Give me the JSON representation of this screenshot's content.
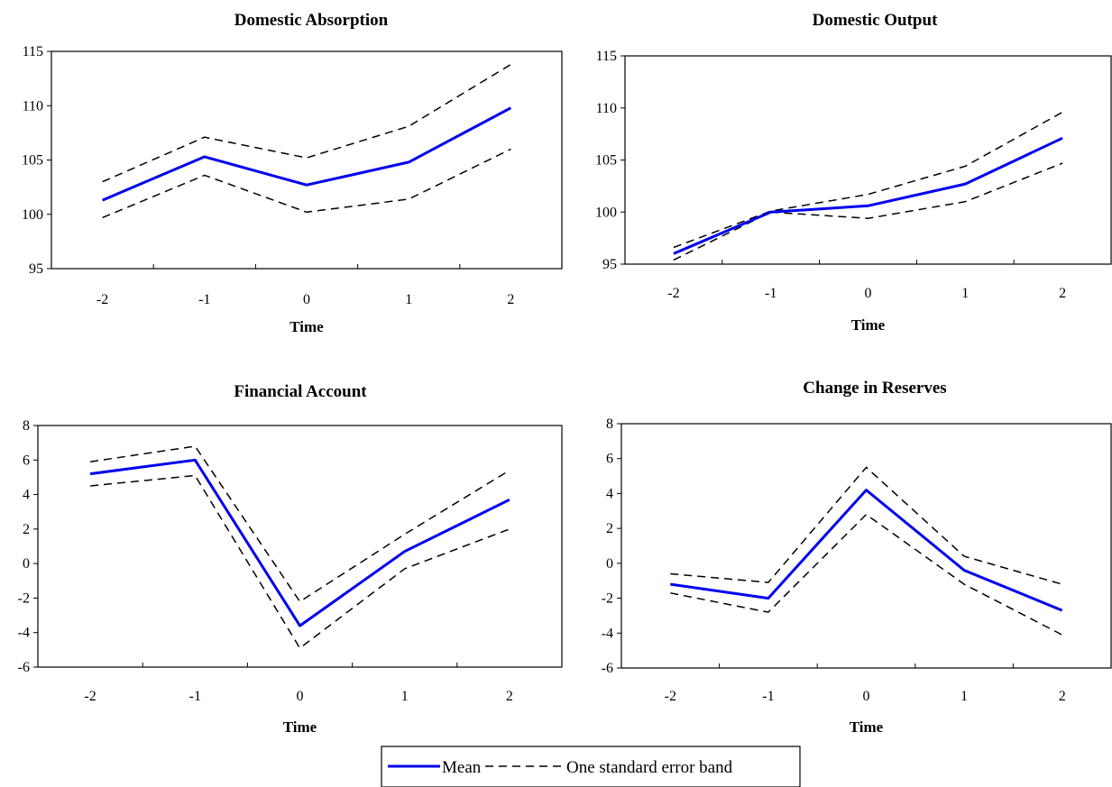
{
  "chart_data": [
    {
      "type": "line",
      "title": "Domestic Absorption",
      "xlabel": "Time",
      "ylabel": "",
      "x": [
        -2,
        -1,
        0,
        1,
        2
      ],
      "ylim": [
        95,
        115
      ],
      "yticks": [
        95,
        100,
        105,
        110,
        115
      ],
      "series": [
        {
          "name": "Mean",
          "values": [
            101.3,
            105.3,
            102.7,
            104.8,
            109.8
          ]
        },
        {
          "name": "One standard error band",
          "values": [
            103.0,
            107.1,
            105.2,
            108.1,
            113.8
          ]
        },
        {
          "name": "One standard error band",
          "values": [
            99.7,
            103.6,
            100.2,
            101.4,
            106.0
          ]
        }
      ]
    },
    {
      "type": "line",
      "title": "Domestic Output",
      "xlabel": "Time",
      "ylabel": "",
      "x": [
        -2,
        -1,
        0,
        1,
        2
      ],
      "ylim": [
        95,
        115
      ],
      "yticks": [
        95,
        100,
        105,
        110,
        115
      ],
      "series": [
        {
          "name": "Mean",
          "values": [
            96.0,
            100.0,
            100.6,
            102.7,
            107.1
          ]
        },
        {
          "name": "One standard error band",
          "values": [
            96.6,
            100.1,
            101.7,
            104.4,
            109.6
          ]
        },
        {
          "name": "One standard error band",
          "values": [
            95.4,
            100.0,
            99.4,
            101.0,
            104.7
          ]
        }
      ]
    },
    {
      "type": "line",
      "title": "Financial Account",
      "xlabel": "Time",
      "ylabel": "",
      "x": [
        -2,
        -1,
        0,
        1,
        2
      ],
      "ylim": [
        -6,
        8
      ],
      "yticks": [
        -6,
        -4,
        -2,
        0,
        2,
        4,
        6,
        8
      ],
      "series": [
        {
          "name": "Mean",
          "values": [
            5.2,
            6.0,
            -3.6,
            0.7,
            3.7
          ]
        },
        {
          "name": "One standard error band",
          "values": [
            5.9,
            6.8,
            -2.2,
            1.7,
            5.4
          ]
        },
        {
          "name": "One standard error band",
          "values": [
            4.5,
            5.1,
            -4.9,
            -0.3,
            2.0
          ]
        }
      ]
    },
    {
      "type": "line",
      "title": "Change in Reserves",
      "xlabel": "Time",
      "ylabel": "",
      "x": [
        -2,
        -1,
        0,
        1,
        2
      ],
      "ylim": [
        -6,
        8
      ],
      "yticks": [
        -6,
        -4,
        -2,
        0,
        2,
        4,
        6,
        8
      ],
      "series": [
        {
          "name": "Mean",
          "values": [
            -1.2,
            -2.0,
            4.2,
            -0.4,
            -2.7
          ]
        },
        {
          "name": "One standard error band",
          "values": [
            -0.6,
            -1.1,
            5.5,
            0.4,
            -1.2
          ]
        },
        {
          "name": "One standard error band",
          "values": [
            -1.7,
            -2.8,
            2.8,
            -1.2,
            -4.1
          ]
        }
      ]
    }
  ],
  "legend": {
    "entries": [
      {
        "label": "Mean",
        "style": "solid",
        "color": "#0000ee"
      },
      {
        "label": "One standard error band",
        "style": "dashed",
        "color": "#000000"
      }
    ],
    "placement": "bottom-center"
  },
  "colors": {
    "mean": "#0000ee",
    "band": "#000000",
    "axis": "#000000"
  }
}
